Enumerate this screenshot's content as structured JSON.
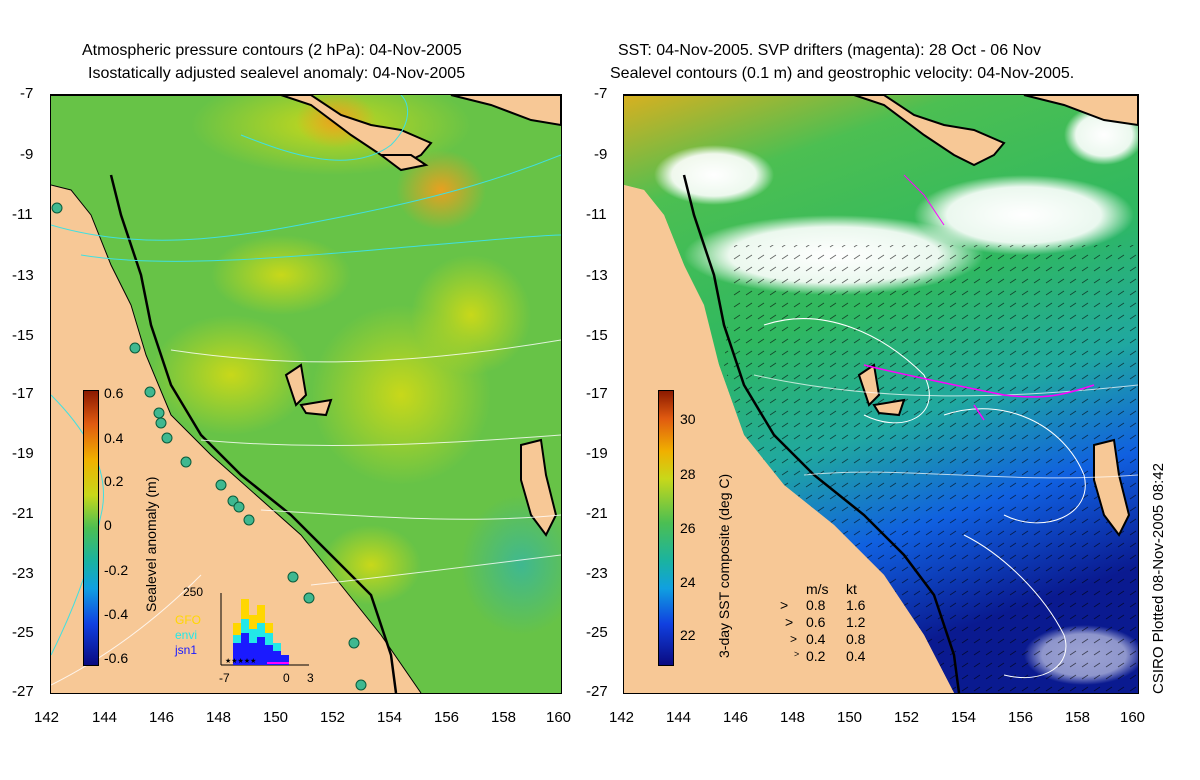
{
  "left_panel": {
    "title_line1": "Atmospheric pressure contours (2 hPa): 04-Nov-2005",
    "title_line2": "Isostatically adjusted sealevel anomaly: 04-Nov-2005",
    "colorbar_label": "Sealevel anomaly (m)",
    "colorbar_ticks": [
      "0.6",
      "0.4",
      "0.2",
      "0",
      "-0.2",
      "-0.4",
      "-0.6"
    ],
    "histogram": {
      "ymax_label": "250",
      "x_ticks": [
        "-7",
        "0",
        "3"
      ],
      "legend": [
        {
          "label": "GFO",
          "color": "#ffd700"
        },
        {
          "label": "envi",
          "color": "#22e8e8"
        },
        {
          "label": "jsn1",
          "color": "#1a1aff"
        }
      ]
    }
  },
  "right_panel": {
    "title_line1": "SST: 04-Nov-2005. SVP drifters (magenta): 28 Oct - 06 Nov",
    "title_line2": "Sealevel contours (0.1 m) and geostrophic velocity: 04-Nov-2005.",
    "colorbar_label": "3-day SST composite (deg C)",
    "colorbar_ticks": [
      "30",
      "28",
      "26",
      "24",
      "22"
    ],
    "velocity_legend": {
      "header_ms": "m/s",
      "header_kt": "kt",
      "rows": [
        {
          "ms": "0.8",
          "kt": "1.6"
        },
        {
          "ms": "0.6",
          "kt": "1.2"
        },
        {
          "ms": "0.4",
          "kt": "0.8"
        },
        {
          "ms": "0.2",
          "kt": "0.4"
        }
      ]
    }
  },
  "axes": {
    "y_ticks": [
      "-7",
      "-9",
      "-11",
      "-13",
      "-15",
      "-17",
      "-19",
      "-21",
      "-23",
      "-25",
      "-27"
    ],
    "x_ticks": [
      "142",
      "144",
      "146",
      "148",
      "150",
      "152",
      "154",
      "156",
      "158",
      "160"
    ]
  },
  "credit": "CSIRO Plotted 08-Nov-2005 08:42",
  "colors": {
    "land": "#f7c896",
    "contour_cyan": "#40e0e0",
    "drifter_magenta": "#ff00ff"
  }
}
